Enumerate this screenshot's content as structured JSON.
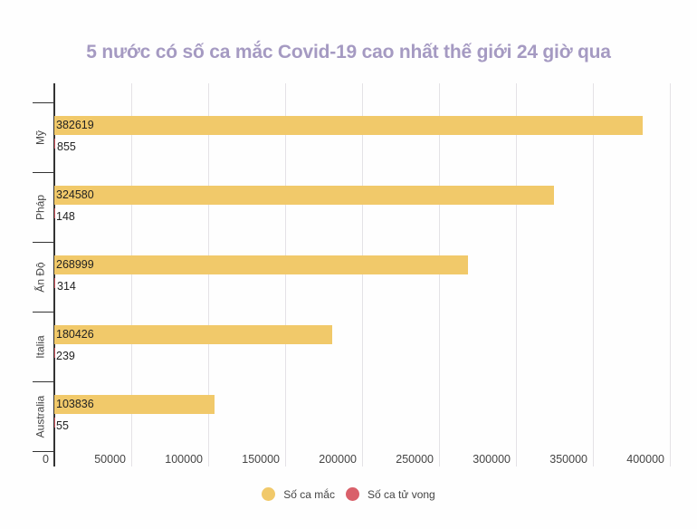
{
  "chart_data": {
    "type": "bar",
    "orientation": "horizontal",
    "title": "5 nước có số ca mắc Covid-19 cao nhất thế giới 24 giờ qua",
    "categories": [
      "Mỹ",
      "Pháp",
      "Ấn Độ",
      "Italia",
      "Australia"
    ],
    "series": [
      {
        "name": "Số ca mắc",
        "color": "#f1c96a",
        "values": [
          382619,
          324580,
          268999,
          180426,
          103836
        ]
      },
      {
        "name": "Số ca tử vong",
        "color": "#d9606a",
        "values": [
          855,
          148,
          314,
          239,
          55
        ]
      }
    ],
    "xlabel": "",
    "ylabel": "",
    "xlim": [
      0,
      400000
    ],
    "x_ticks": [
      "0",
      "50000",
      "100000",
      "150000",
      "200000",
      "250000",
      "300000",
      "350000",
      "400000"
    ],
    "grid": true,
    "legend_position": "bottom",
    "data_labels": true
  },
  "legend": [
    {
      "label": "Số ca mắc",
      "color": "#f1c96a"
    },
    {
      "label": "Số ca tử vong",
      "color": "#d9606a"
    }
  ]
}
